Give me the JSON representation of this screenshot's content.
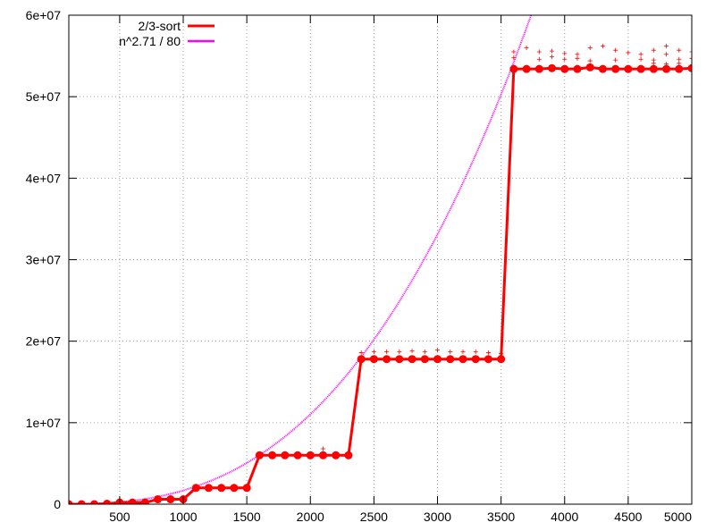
{
  "chart_data": {
    "type": "line",
    "title": "",
    "xlabel": "",
    "ylabel": "",
    "xlim": [
      100,
      5000
    ],
    "ylim": [
      0,
      60000000
    ],
    "grid": true,
    "legend_position": "top-left",
    "x_ticks": [
      500,
      1000,
      1500,
      2000,
      2500,
      3000,
      3500,
      4000,
      4500,
      5000
    ],
    "x_tick_labels": [
      "500",
      "1000",
      "1500",
      "2000",
      "2500",
      "3000",
      "3500",
      "4000",
      "4500",
      "5000"
    ],
    "y_ticks": [
      0,
      10000000,
      20000000,
      30000000,
      40000000,
      50000000,
      60000000
    ],
    "y_tick_labels": [
      "0",
      "1e+07",
      "2e+07",
      "3e+07",
      "4e+07",
      "5e+07",
      "6e+07"
    ],
    "series": [
      {
        "name": "2/3-sort",
        "color": "#ff0000",
        "x": [
          100,
          200,
          300,
          400,
          500,
          600,
          700,
          800,
          900,
          1000,
          1100,
          1200,
          1300,
          1400,
          1500,
          1600,
          1700,
          1800,
          1900,
          2000,
          2100,
          2200,
          2300,
          2400,
          2500,
          2600,
          2700,
          2800,
          2900,
          3000,
          3100,
          3200,
          3300,
          3400,
          3500,
          3600,
          3700,
          3800,
          3900,
          4000,
          4100,
          4200,
          4300,
          4400,
          4500,
          4600,
          4700,
          4800,
          4900,
          5000
        ],
        "values": [
          0,
          0,
          0,
          50000,
          200000,
          200000,
          200000,
          600000,
          600000,
          600000,
          2000000,
          2000000,
          2000000,
          2000000,
          2000000,
          6000000,
          6000000,
          6000000,
          6000000,
          6000000,
          6000000,
          6000000,
          6000000,
          17800000,
          17800000,
          17800000,
          17800000,
          17800000,
          17800000,
          17800000,
          17800000,
          17800000,
          17800000,
          17800000,
          17800000,
          53400000,
          53400000,
          53400000,
          53500000,
          53400000,
          53400000,
          53600000,
          53400000,
          53400000,
          53400000,
          53400000,
          53400000,
          53400000,
          53400000,
          53500000
        ]
      },
      {
        "name": "n^2.71 / 80",
        "color": "#ff00ff",
        "function": "n^2.71 / 80",
        "exponent": 2.71,
        "divisor": 80
      }
    ],
    "scatter_points": {
      "color": "#ff0000",
      "points": [
        [
          2100,
          6800000
        ],
        [
          2400,
          18600000
        ],
        [
          2500,
          18700000
        ],
        [
          2600,
          18700000
        ],
        [
          2700,
          18700000
        ],
        [
          2800,
          18800000
        ],
        [
          2900,
          18700000
        ],
        [
          3000,
          18900000
        ],
        [
          3100,
          18700000
        ],
        [
          3200,
          18700000
        ],
        [
          3300,
          18700000
        ],
        [
          3400,
          18600000
        ],
        [
          3500,
          18500000
        ],
        [
          3600,
          55500000
        ],
        [
          3700,
          56000000
        ],
        [
          3800,
          55500000
        ],
        [
          3900,
          55600000
        ],
        [
          4000,
          55300000
        ],
        [
          4100,
          55200000
        ],
        [
          4200,
          56000000
        ],
        [
          4300,
          56200000
        ],
        [
          4400,
          55700000
        ],
        [
          4500,
          55400000
        ],
        [
          4600,
          55200000
        ],
        [
          4700,
          55700000
        ],
        [
          4800,
          56200000
        ],
        [
          4900,
          55700000
        ],
        [
          5000,
          55500000
        ],
        [
          3600,
          54800000
        ],
        [
          3800,
          54600000
        ],
        [
          3900,
          54900000
        ],
        [
          4000,
          54600000
        ],
        [
          4100,
          54700000
        ],
        [
          4200,
          54400000
        ],
        [
          4400,
          54500000
        ],
        [
          4600,
          54600000
        ],
        [
          4700,
          54500000
        ],
        [
          4800,
          55200000
        ],
        [
          4900,
          54600000
        ],
        [
          5000,
          54700000
        ],
        [
          4700,
          54100000
        ],
        [
          4800,
          54000000
        ],
        [
          4900,
          54100000
        ]
      ]
    }
  }
}
